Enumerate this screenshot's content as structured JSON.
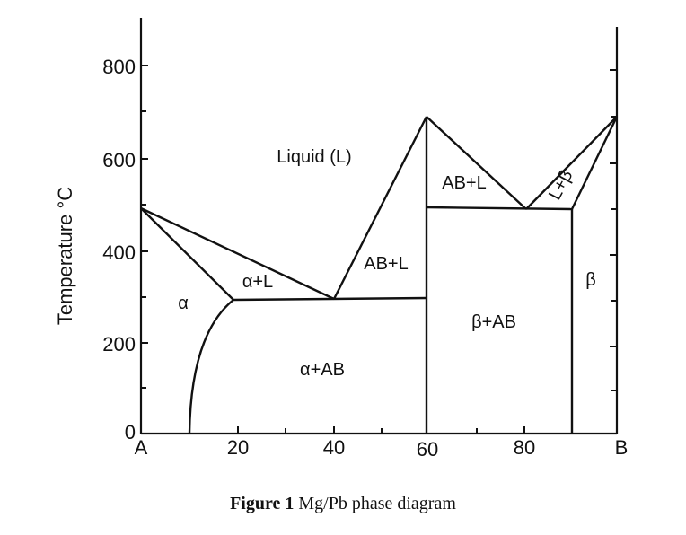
{
  "axes": {
    "ylabel": "Temperature °C",
    "y_ticks": [
      "800",
      "600",
      "400",
      "200",
      "0"
    ],
    "x_ticks": [
      "A",
      "20",
      "40",
      "60",
      "80",
      "B"
    ]
  },
  "regions": {
    "liquid": "Liquid (L)",
    "alpha": "α",
    "alpha_l": "α+L",
    "ab_l_left": "AB+L",
    "ab_l_right": "AB+L",
    "l_beta": "L+β",
    "beta": "β",
    "beta_ab": "β+AB",
    "alpha_ab": "α+AB"
  },
  "caption": {
    "bold": "Figure 1",
    "text": " Mg/Pb phase diagram"
  }
}
